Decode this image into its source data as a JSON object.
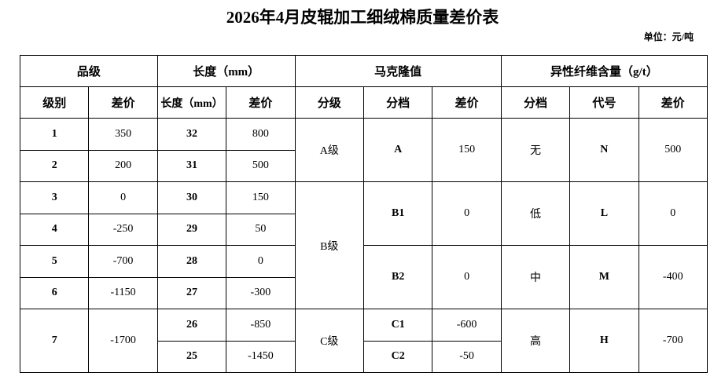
{
  "title": "2026年4月皮辊加工细绒棉质量差价表",
  "unit": "单位：元/吨",
  "groups": [
    "品级",
    "长度（mm）",
    "马克隆值",
    "异性纤维含量（g/t）"
  ],
  "columns": [
    "级别",
    "差价",
    "长度（mm）",
    "差价",
    "分级",
    "分档",
    "差价",
    "分档",
    "代号",
    "差价"
  ],
  "grade": [
    {
      "level": "1",
      "price": "350"
    },
    {
      "level": "2",
      "price": "200"
    },
    {
      "level": "3",
      "price": "0"
    },
    {
      "level": "4",
      "price": "-250"
    },
    {
      "level": "5",
      "price": "-700"
    },
    {
      "level": "6",
      "price": "-1150"
    },
    {
      "level": "7",
      "price": "-1700"
    }
  ],
  "length": [
    {
      "len": "32",
      "price": "800"
    },
    {
      "len": "31",
      "price": "500"
    },
    {
      "len": "30",
      "price": "150"
    },
    {
      "len": "29",
      "price": "50"
    },
    {
      "len": "28",
      "price": "0"
    },
    {
      "len": "27",
      "price": "-300"
    },
    {
      "len": "26",
      "price": "-850"
    },
    {
      "len": "25",
      "price": "-1450"
    }
  ],
  "micronaire": {
    "classes": [
      "A级",
      "B级",
      "C级"
    ],
    "bands": [
      {
        "band": "A",
        "price": "150"
      },
      {
        "band": "B1",
        "price": "0"
      },
      {
        "band": "B2",
        "price": "0"
      },
      {
        "band": "C1",
        "price": "-600"
      },
      {
        "band": "C2",
        "price": "-50"
      }
    ]
  },
  "foreign_fiber": [
    {
      "band": "无",
      "code": "N",
      "price": "500"
    },
    {
      "band": "低",
      "code": "L",
      "price": "0"
    },
    {
      "band": "中",
      "code": "M",
      "price": "-400"
    },
    {
      "band": "高",
      "code": "H",
      "price": "-700"
    }
  ]
}
